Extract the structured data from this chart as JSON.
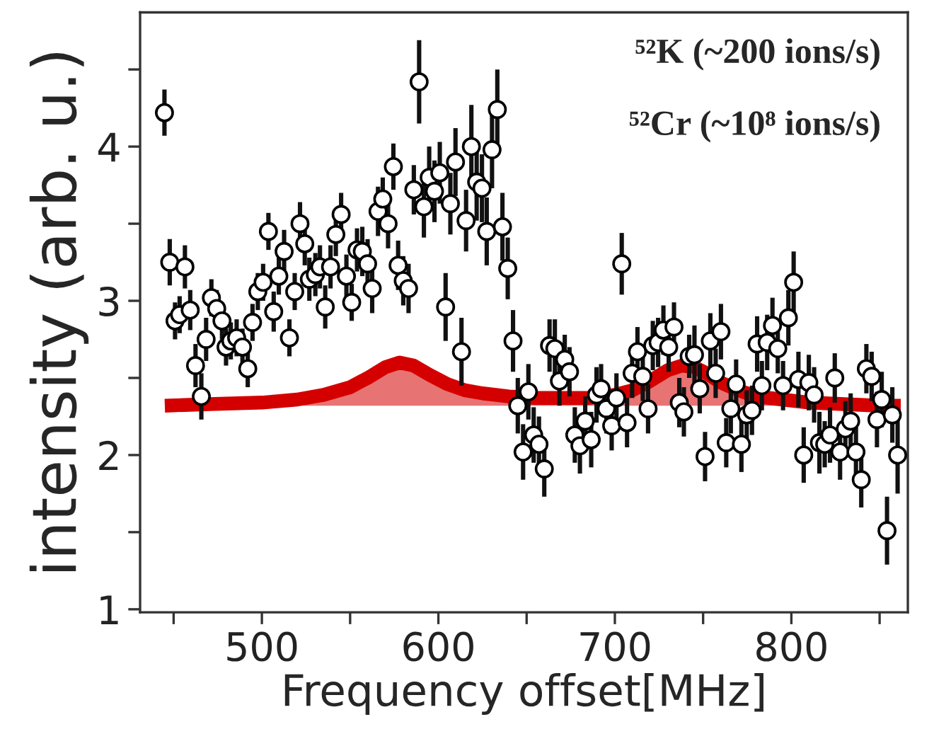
{
  "chart_data": {
    "type": "scatter",
    "xlabel": "Frequency offset[MHz]",
    "ylabel": "intensity (arb. u.)",
    "xlim": [
      431,
      866
    ],
    "ylim": [
      0.98,
      4.87
    ],
    "xticks": [
      {
        "value": 450,
        "label": null
      },
      500,
      {
        "value": 550,
        "label": null
      },
      600,
      {
        "value": 650,
        "label": null
      },
      700,
      {
        "value": 750,
        "label": null
      },
      800,
      {
        "value": 850,
        "label": null
      }
    ],
    "yticks": [
      1,
      {
        "value": 1.5,
        "label": null
      },
      2,
      {
        "value": 2.5,
        "label": null
      },
      3,
      {
        "value": 3.5,
        "label": null
      },
      4,
      {
        "value": 4.5,
        "label": null
      }
    ],
    "grid": false,
    "legend": false,
    "annotations": [
      "⁵²K (~200 ions/s)",
      "⁵²Cr (~10⁸ ions/s)"
    ],
    "series": [
      {
        "color": "#ffffff",
        "marker": "circle",
        "x": [
          444.8,
          447.8,
          450.8,
          453.4,
          456.4,
          459.4,
          462.4,
          465.7,
          468.4,
          471.4,
          474.4,
          477.4,
          479.7,
          482.4,
          485.7,
          489.0,
          492.0,
          494.7,
          497.7,
          500.7,
          503.7,
          506.7,
          509.6,
          512.6,
          515.6,
          518.6,
          521.6,
          524.3,
          526.9,
          530.3,
          532.9,
          535.9,
          538.9,
          541.9,
          544.9,
          547.9,
          550.9,
          553.9,
          556.9,
          559.9,
          562.5,
          565.8,
          568.5,
          571.5,
          574.5,
          577.2,
          580.1,
          583.1,
          586.1,
          589.1,
          591.8,
          594.8,
          597.8,
          600.8,
          604.1,
          606.8,
          609.7,
          613.1,
          615.7,
          618.7,
          621.7,
          624.7,
          627.4,
          630.4,
          633.4,
          636.3,
          639.3,
          642.3,
          645.0,
          648.0,
          651.0,
          654.0,
          657.0,
          660.0,
          663.0,
          666.0,
          668.6,
          671.6,
          674.3,
          677.3,
          680.2,
          683.2,
          686.6,
          689.6,
          692.2,
          695.2,
          698.2,
          700.9,
          703.9,
          706.9,
          709.8,
          712.8,
          715.8,
          718.8,
          721.5,
          724.5,
          727.5,
          730.5,
          733.5,
          736.5,
          739.1,
          742.1,
          745.1,
          748.1,
          751.1,
          754.1,
          757.1,
          760.1,
          763.1,
          765.7,
          768.7,
          771.7,
          774.7,
          777.7,
          780.6,
          783.3,
          786.3,
          789.3,
          792.3,
          795.3,
          798.3,
          801.3,
          804.0,
          807.0,
          809.9,
          812.9,
          815.9,
          818.9,
          821.9,
          824.6,
          827.6,
          830.6,
          833.6,
          836.6,
          839.6,
          842.5,
          845.5,
          848.5,
          851.2,
          854.2,
          857.2,
          860.2
        ],
        "values": [
          4.22,
          3.25,
          2.87,
          2.91,
          3.22,
          2.94,
          2.58,
          2.38,
          2.75,
          3.02,
          2.95,
          2.87,
          2.7,
          2.74,
          2.76,
          2.7,
          2.56,
          2.86,
          3.06,
          3.12,
          3.45,
          2.93,
          3.16,
          3.32,
          2.76,
          3.06,
          3.5,
          3.37,
          3.14,
          3.17,
          3.22,
          2.96,
          3.22,
          3.43,
          3.56,
          3.16,
          2.99,
          3.33,
          3.32,
          3.24,
          3.08,
          3.58,
          3.66,
          3.5,
          3.87,
          3.23,
          3.13,
          3.08,
          3.72,
          4.42,
          3.61,
          3.8,
          3.71,
          3.83,
          2.96,
          3.63,
          3.9,
          2.67,
          3.52,
          4.0,
          3.77,
          3.73,
          3.45,
          3.98,
          4.24,
          3.48,
          3.21,
          2.74,
          2.32,
          2.02,
          2.41,
          2.13,
          2.07,
          1.91,
          2.71,
          2.69,
          2.48,
          2.62,
          2.54,
          2.13,
          2.06,
          2.22,
          2.1,
          2.39,
          2.43,
          2.3,
          2.19,
          2.37,
          3.24,
          2.21,
          2.53,
          2.67,
          2.51,
          2.3,
          2.71,
          2.73,
          2.81,
          2.7,
          2.83,
          2.34,
          2.28,
          2.64,
          2.65,
          2.43,
          1.99,
          2.74,
          2.53,
          2.8,
          2.08,
          2.3,
          2.46,
          2.07,
          2.26,
          2.29,
          2.72,
          2.45,
          2.73,
          2.84,
          2.69,
          2.45,
          2.89,
          3.12,
          2.49,
          2.0,
          2.47,
          2.39,
          2.08,
          2.07,
          2.13,
          2.5,
          2.02,
          2.17,
          2.22,
          2.02,
          1.84,
          2.56,
          2.51,
          2.23,
          2.36,
          1.51,
          2.26,
          2.0
        ],
        "errors": [
          0.15,
          0.15,
          0.12,
          0.12,
          0.14,
          0.13,
          0.14,
          0.15,
          0.14,
          0.12,
          0.12,
          0.12,
          0.12,
          0.12,
          0.12,
          0.12,
          0.12,
          0.12,
          0.12,
          0.12,
          0.12,
          0.13,
          0.12,
          0.14,
          0.12,
          0.12,
          0.14,
          0.14,
          0.14,
          0.14,
          0.14,
          0.14,
          0.14,
          0.14,
          0.14,
          0.14,
          0.12,
          0.14,
          0.16,
          0.16,
          0.16,
          0.16,
          0.14,
          0.16,
          0.15,
          0.16,
          0.16,
          0.16,
          0.16,
          0.27,
          0.2,
          0.2,
          0.2,
          0.2,
          0.22,
          0.2,
          0.22,
          0.22,
          0.2,
          0.27,
          0.25,
          0.22,
          0.22,
          0.25,
          0.26,
          0.22,
          0.2,
          0.2,
          0.18,
          0.18,
          0.18,
          0.18,
          0.18,
          0.18,
          0.17,
          0.19,
          0.16,
          0.16,
          0.16,
          0.18,
          0.18,
          0.16,
          0.18,
          0.18,
          0.16,
          0.16,
          0.16,
          0.16,
          0.2,
          0.16,
          0.16,
          0.16,
          0.16,
          0.16,
          0.16,
          0.16,
          0.16,
          0.16,
          0.16,
          0.16,
          0.16,
          0.14,
          0.19,
          0.16,
          0.16,
          0.18,
          0.16,
          0.18,
          0.16,
          0.16,
          0.16,
          0.18,
          0.16,
          0.16,
          0.18,
          0.16,
          0.18,
          0.18,
          0.16,
          0.16,
          0.18,
          0.2,
          0.18,
          0.18,
          0.18,
          0.18,
          0.2,
          0.15,
          0.18,
          0.16,
          0.18,
          0.18,
          0.18,
          0.18,
          0.18,
          0.16,
          0.16,
          0.18,
          0.18,
          0.22,
          0.18,
          0.25
        ]
      },
      {
        "type": "line",
        "color": "#d40000",
        "marker": "none",
        "line_style": "solid",
        "x": [
          445,
          470,
          500,
          520,
          535,
          550,
          560,
          570,
          578,
          586,
          595,
          605,
          615,
          625,
          640,
          655,
          670,
          685,
          700,
          710,
          720,
          730,
          738,
          745,
          752,
          760,
          770,
          780,
          795,
          810,
          830,
          850,
          862
        ],
        "values": [
          2.32,
          2.33,
          2.34,
          2.36,
          2.39,
          2.44,
          2.5,
          2.57,
          2.6,
          2.58,
          2.52,
          2.46,
          2.42,
          2.4,
          2.38,
          2.37,
          2.37,
          2.37,
          2.39,
          2.42,
          2.48,
          2.55,
          2.58,
          2.57,
          2.53,
          2.47,
          2.42,
          2.38,
          2.36,
          2.34,
          2.33,
          2.32,
          2.32
        ],
        "lower": [
          2.32,
          2.32,
          2.32,
          2.32,
          2.32,
          2.32,
          2.32,
          2.32,
          2.32,
          2.32,
          2.32,
          2.32,
          2.32,
          2.32,
          2.32,
          2.32,
          2.32,
          2.32,
          2.32,
          2.32,
          2.32,
          2.32,
          2.32,
          2.32,
          2.32,
          2.32,
          2.32,
          2.32,
          2.32,
          2.32,
          2.32,
          2.32,
          2.32
        ],
        "upper": [
          2.32,
          2.33,
          2.34,
          2.36,
          2.39,
          2.44,
          2.5,
          2.57,
          2.6,
          2.58,
          2.52,
          2.46,
          2.42,
          2.4,
          2.38,
          2.37,
          2.37,
          2.37,
          2.39,
          2.42,
          2.48,
          2.55,
          2.58,
          2.57,
          2.53,
          2.47,
          2.42,
          2.38,
          2.36,
          2.34,
          2.33,
          2.32,
          2.32
        ]
      }
    ]
  }
}
